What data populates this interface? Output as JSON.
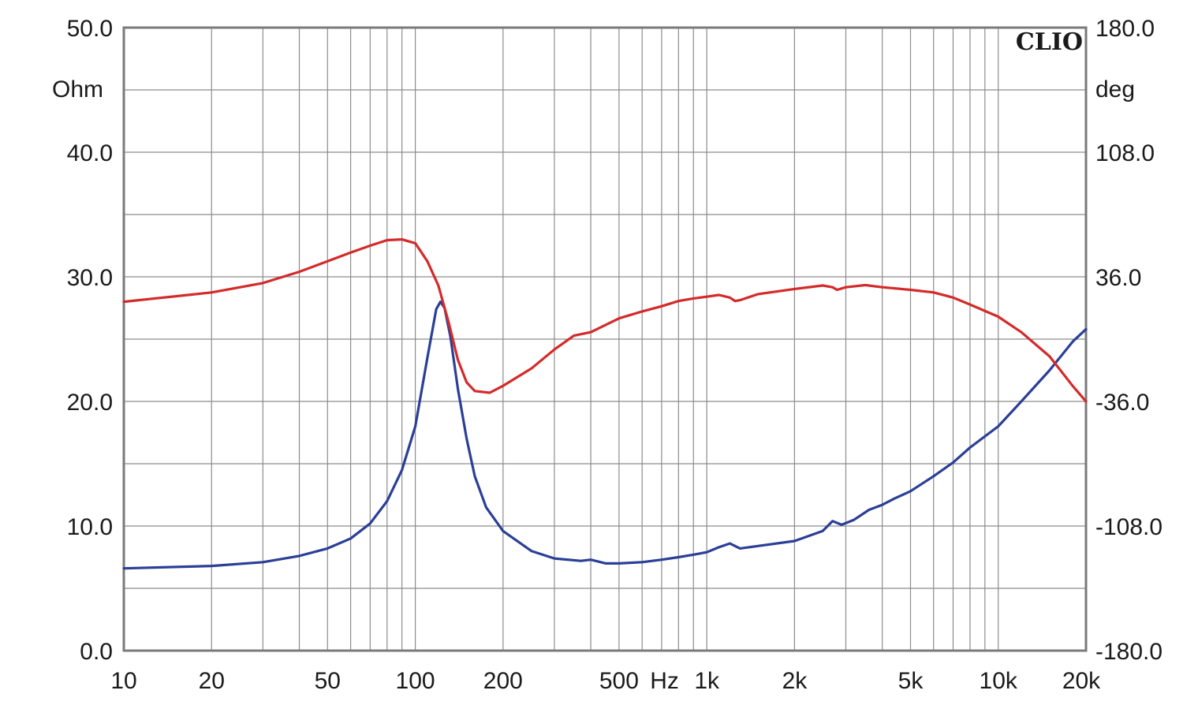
{
  "chart_data": {
    "type": "line",
    "brand": "CLIO",
    "x_axis": {
      "scale": "log",
      "range": [
        10,
        20000
      ],
      "ticks": [
        {
          "value": 10,
          "label": "10"
        },
        {
          "value": 20,
          "label": "20"
        },
        {
          "value": 50,
          "label": "50"
        },
        {
          "value": 100,
          "label": "100"
        },
        {
          "value": 200,
          "label": "200"
        },
        {
          "value": 500,
          "label": "500"
        },
        {
          "value": 1000,
          "label": "1k"
        },
        {
          "value": 2000,
          "label": "2k"
        },
        {
          "value": 5000,
          "label": "5k"
        },
        {
          "value": 10000,
          "label": "10k"
        },
        {
          "value": 20000,
          "label": "20k"
        }
      ],
      "unit_label": "Hz"
    },
    "y_left": {
      "range": [
        0,
        50
      ],
      "ticks": [
        "0.0",
        "10.0",
        "20.0",
        "30.0",
        "40.0",
        "50.0"
      ],
      "unit_label": "Ohm"
    },
    "y_right": {
      "range": [
        -180,
        180
      ],
      "ticks": [
        "-180.0",
        "-108.0",
        "-36.0",
        "36.0",
        "108.0",
        "180.0"
      ],
      "unit_label": "deg"
    },
    "grid": true,
    "series": [
      {
        "color": "#2b3f97",
        "axis": "left",
        "points": [
          [
            10,
            6.6
          ],
          [
            20,
            6.8
          ],
          [
            30,
            7.1
          ],
          [
            40,
            7.6
          ],
          [
            50,
            8.2
          ],
          [
            60,
            9.0
          ],
          [
            70,
            10.2
          ],
          [
            80,
            12.0
          ],
          [
            90,
            14.5
          ],
          [
            100,
            18.0
          ],
          [
            110,
            23.5
          ],
          [
            118,
            27.4
          ],
          [
            122,
            28.0
          ],
          [
            126,
            27.5
          ],
          [
            132,
            25.2
          ],
          [
            140,
            21.0
          ],
          [
            150,
            17.0
          ],
          [
            160,
            14.0
          ],
          [
            175,
            11.5
          ],
          [
            200,
            9.6
          ],
          [
            250,
            8.0
          ],
          [
            300,
            7.4
          ],
          [
            370,
            7.2
          ],
          [
            400,
            7.3
          ],
          [
            450,
            7.0
          ],
          [
            500,
            7.0
          ],
          [
            600,
            7.1
          ],
          [
            700,
            7.3
          ],
          [
            800,
            7.5
          ],
          [
            900,
            7.7
          ],
          [
            1000,
            7.9
          ],
          [
            1100,
            8.3
          ],
          [
            1200,
            8.6
          ],
          [
            1300,
            8.2
          ],
          [
            1500,
            8.4
          ],
          [
            2000,
            8.8
          ],
          [
            2500,
            9.6
          ],
          [
            2700,
            10.4
          ],
          [
            2900,
            10.1
          ],
          [
            3200,
            10.5
          ],
          [
            3600,
            11.3
          ],
          [
            4000,
            11.7
          ],
          [
            4400,
            12.2
          ],
          [
            5000,
            12.8
          ],
          [
            6000,
            14.0
          ],
          [
            7000,
            15.1
          ],
          [
            8000,
            16.3
          ],
          [
            10000,
            18.0
          ],
          [
            12000,
            20.0
          ],
          [
            15000,
            22.5
          ],
          [
            18000,
            24.8
          ],
          [
            20000,
            25.8
          ]
        ]
      },
      {
        "color": "#d42a2a",
        "axis": "right",
        "points": [
          [
            10,
            21.6
          ],
          [
            20,
            27.0
          ],
          [
            30,
            32.4
          ],
          [
            40,
            38.9
          ],
          [
            50,
            45.0
          ],
          [
            60,
            50.0
          ],
          [
            70,
            54.0
          ],
          [
            80,
            57.2
          ],
          [
            90,
            57.6
          ],
          [
            100,
            55.4
          ],
          [
            110,
            45.0
          ],
          [
            120,
            31.0
          ],
          [
            130,
            10.0
          ],
          [
            140,
            -12.0
          ],
          [
            150,
            -25.0
          ],
          [
            160,
            -30.0
          ],
          [
            180,
            -31.0
          ],
          [
            200,
            -27.0
          ],
          [
            250,
            -17.0
          ],
          [
            300,
            -6.0
          ],
          [
            350,
            2.0
          ],
          [
            400,
            4.0
          ],
          [
            500,
            12.0
          ],
          [
            600,
            16.0
          ],
          [
            700,
            19.0
          ],
          [
            800,
            22.0
          ],
          [
            900,
            23.5
          ],
          [
            1000,
            24.5
          ],
          [
            1100,
            25.5
          ],
          [
            1200,
            24.0
          ],
          [
            1250,
            22.0
          ],
          [
            1300,
            22.5
          ],
          [
            1500,
            26.0
          ],
          [
            2000,
            29.0
          ],
          [
            2500,
            31.0
          ],
          [
            2700,
            30.0
          ],
          [
            2800,
            28.5
          ],
          [
            3000,
            30.0
          ],
          [
            3500,
            31.2
          ],
          [
            4000,
            30.0
          ],
          [
            5000,
            28.5
          ],
          [
            6000,
            27.0
          ],
          [
            7000,
            24.0
          ],
          [
            8000,
            20.0
          ],
          [
            10000,
            13.0
          ],
          [
            12000,
            4.0
          ],
          [
            15000,
            -10.0
          ],
          [
            18000,
            -27.0
          ],
          [
            20000,
            -36.0
          ]
        ]
      }
    ]
  }
}
